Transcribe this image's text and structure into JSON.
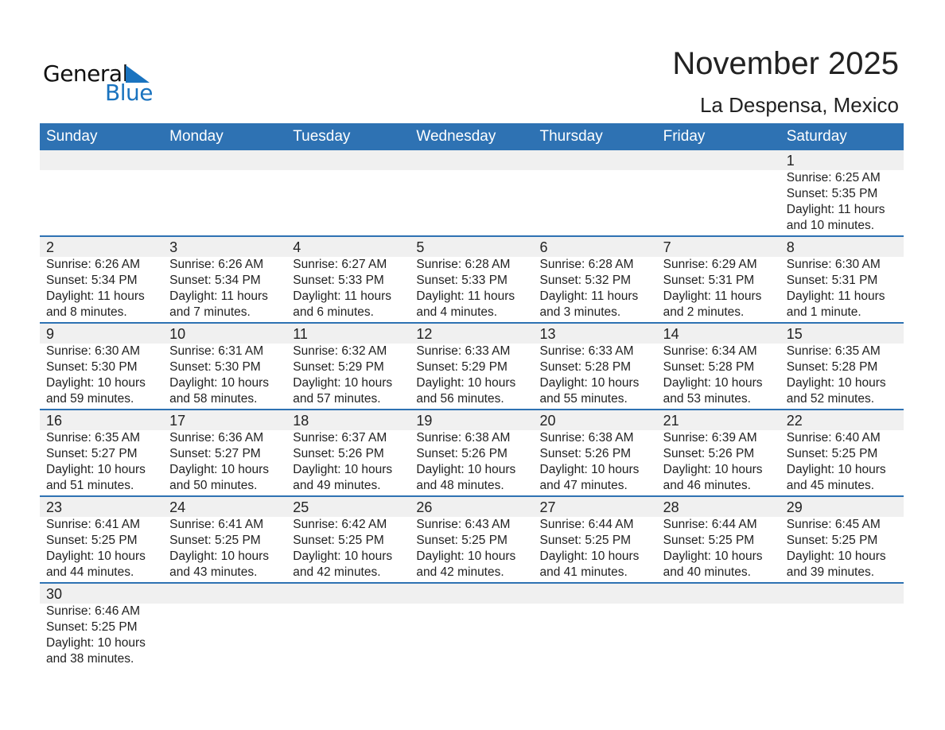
{
  "logo": {
    "word1": "General",
    "word2": "Blue"
  },
  "header": {
    "title": "November 2025",
    "location": "La Despensa, Mexico"
  },
  "colors": {
    "accent": "#2e72b3",
    "logo_blue": "#1a73bf",
    "day_band": "#f0f0f0"
  },
  "weekdays": [
    "Sunday",
    "Monday",
    "Tuesday",
    "Wednesday",
    "Thursday",
    "Friday",
    "Saturday"
  ],
  "weeks": [
    [
      null,
      null,
      null,
      null,
      null,
      null,
      {
        "day": "1",
        "sunrise": "Sunrise: 6:25 AM",
        "sunset": "Sunset: 5:35 PM",
        "daylight": "Daylight: 11 hours",
        "minutes": "and 10 minutes."
      }
    ],
    [
      {
        "day": "2",
        "sunrise": "Sunrise: 6:26 AM",
        "sunset": "Sunset: 5:34 PM",
        "daylight": "Daylight: 11 hours",
        "minutes": "and 8 minutes."
      },
      {
        "day": "3",
        "sunrise": "Sunrise: 6:26 AM",
        "sunset": "Sunset: 5:34 PM",
        "daylight": "Daylight: 11 hours",
        "minutes": "and 7 minutes."
      },
      {
        "day": "4",
        "sunrise": "Sunrise: 6:27 AM",
        "sunset": "Sunset: 5:33 PM",
        "daylight": "Daylight: 11 hours",
        "minutes": "and 6 minutes."
      },
      {
        "day": "5",
        "sunrise": "Sunrise: 6:28 AM",
        "sunset": "Sunset: 5:33 PM",
        "daylight": "Daylight: 11 hours",
        "minutes": "and 4 minutes."
      },
      {
        "day": "6",
        "sunrise": "Sunrise: 6:28 AM",
        "sunset": "Sunset: 5:32 PM",
        "daylight": "Daylight: 11 hours",
        "minutes": "and 3 minutes."
      },
      {
        "day": "7",
        "sunrise": "Sunrise: 6:29 AM",
        "sunset": "Sunset: 5:31 PM",
        "daylight": "Daylight: 11 hours",
        "minutes": "and 2 minutes."
      },
      {
        "day": "8",
        "sunrise": "Sunrise: 6:30 AM",
        "sunset": "Sunset: 5:31 PM",
        "daylight": "Daylight: 11 hours",
        "minutes": "and 1 minute."
      }
    ],
    [
      {
        "day": "9",
        "sunrise": "Sunrise: 6:30 AM",
        "sunset": "Sunset: 5:30 PM",
        "daylight": "Daylight: 10 hours",
        "minutes": "and 59 minutes."
      },
      {
        "day": "10",
        "sunrise": "Sunrise: 6:31 AM",
        "sunset": "Sunset: 5:30 PM",
        "daylight": "Daylight: 10 hours",
        "minutes": "and 58 minutes."
      },
      {
        "day": "11",
        "sunrise": "Sunrise: 6:32 AM",
        "sunset": "Sunset: 5:29 PM",
        "daylight": "Daylight: 10 hours",
        "minutes": "and 57 minutes."
      },
      {
        "day": "12",
        "sunrise": "Sunrise: 6:33 AM",
        "sunset": "Sunset: 5:29 PM",
        "daylight": "Daylight: 10 hours",
        "minutes": "and 56 minutes."
      },
      {
        "day": "13",
        "sunrise": "Sunrise: 6:33 AM",
        "sunset": "Sunset: 5:28 PM",
        "daylight": "Daylight: 10 hours",
        "minutes": "and 55 minutes."
      },
      {
        "day": "14",
        "sunrise": "Sunrise: 6:34 AM",
        "sunset": "Sunset: 5:28 PM",
        "daylight": "Daylight: 10 hours",
        "minutes": "and 53 minutes."
      },
      {
        "day": "15",
        "sunrise": "Sunrise: 6:35 AM",
        "sunset": "Sunset: 5:28 PM",
        "daylight": "Daylight: 10 hours",
        "minutes": "and 52 minutes."
      }
    ],
    [
      {
        "day": "16",
        "sunrise": "Sunrise: 6:35 AM",
        "sunset": "Sunset: 5:27 PM",
        "daylight": "Daylight: 10 hours",
        "minutes": "and 51 minutes."
      },
      {
        "day": "17",
        "sunrise": "Sunrise: 6:36 AM",
        "sunset": "Sunset: 5:27 PM",
        "daylight": "Daylight: 10 hours",
        "minutes": "and 50 minutes."
      },
      {
        "day": "18",
        "sunrise": "Sunrise: 6:37 AM",
        "sunset": "Sunset: 5:26 PM",
        "daylight": "Daylight: 10 hours",
        "minutes": "and 49 minutes."
      },
      {
        "day": "19",
        "sunrise": "Sunrise: 6:38 AM",
        "sunset": "Sunset: 5:26 PM",
        "daylight": "Daylight: 10 hours",
        "minutes": "and 48 minutes."
      },
      {
        "day": "20",
        "sunrise": "Sunrise: 6:38 AM",
        "sunset": "Sunset: 5:26 PM",
        "daylight": "Daylight: 10 hours",
        "minutes": "and 47 minutes."
      },
      {
        "day": "21",
        "sunrise": "Sunrise: 6:39 AM",
        "sunset": "Sunset: 5:26 PM",
        "daylight": "Daylight: 10 hours",
        "minutes": "and 46 minutes."
      },
      {
        "day": "22",
        "sunrise": "Sunrise: 6:40 AM",
        "sunset": "Sunset: 5:25 PM",
        "daylight": "Daylight: 10 hours",
        "minutes": "and 45 minutes."
      }
    ],
    [
      {
        "day": "23",
        "sunrise": "Sunrise: 6:41 AM",
        "sunset": "Sunset: 5:25 PM",
        "daylight": "Daylight: 10 hours",
        "minutes": "and 44 minutes."
      },
      {
        "day": "24",
        "sunrise": "Sunrise: 6:41 AM",
        "sunset": "Sunset: 5:25 PM",
        "daylight": "Daylight: 10 hours",
        "minutes": "and 43 minutes."
      },
      {
        "day": "25",
        "sunrise": "Sunrise: 6:42 AM",
        "sunset": "Sunset: 5:25 PM",
        "daylight": "Daylight: 10 hours",
        "minutes": "and 42 minutes."
      },
      {
        "day": "26",
        "sunrise": "Sunrise: 6:43 AM",
        "sunset": "Sunset: 5:25 PM",
        "daylight": "Daylight: 10 hours",
        "minutes": "and 42 minutes."
      },
      {
        "day": "27",
        "sunrise": "Sunrise: 6:44 AM",
        "sunset": "Sunset: 5:25 PM",
        "daylight": "Daylight: 10 hours",
        "minutes": "and 41 minutes."
      },
      {
        "day": "28",
        "sunrise": "Sunrise: 6:44 AM",
        "sunset": "Sunset: 5:25 PM",
        "daylight": "Daylight: 10 hours",
        "minutes": "and 40 minutes."
      },
      {
        "day": "29",
        "sunrise": "Sunrise: 6:45 AM",
        "sunset": "Sunset: 5:25 PM",
        "daylight": "Daylight: 10 hours",
        "minutes": "and 39 minutes."
      }
    ],
    [
      {
        "day": "30",
        "sunrise": "Sunrise: 6:46 AM",
        "sunset": "Sunset: 5:25 PM",
        "daylight": "Daylight: 10 hours",
        "minutes": "and 38 minutes."
      },
      null,
      null,
      null,
      null,
      null,
      null
    ]
  ]
}
